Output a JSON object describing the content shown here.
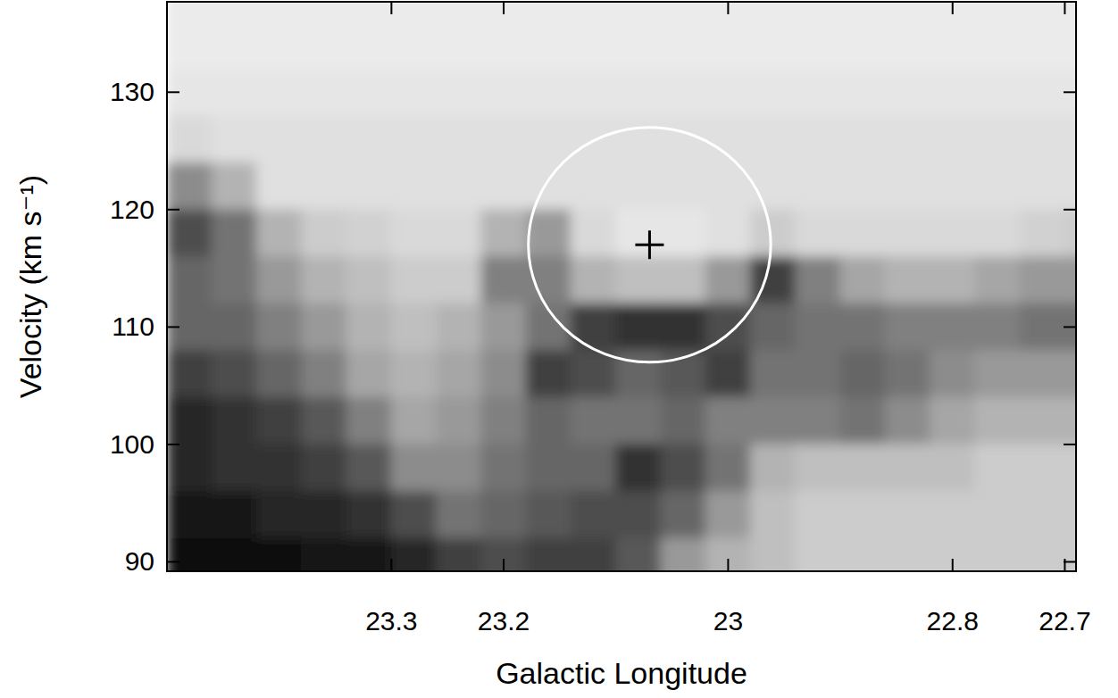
{
  "chart_data": {
    "type": "heatmap",
    "xlabel": "Galactic Longitude",
    "ylabel": "Velocity (km s⁻¹)",
    "xlim": [
      23.5,
      22.69
    ],
    "ylim": [
      89.2,
      137.7
    ],
    "xticks": [
      23.3,
      23.2,
      23.0,
      22.8,
      22.7
    ],
    "yticks": [
      90,
      100,
      110,
      120,
      130
    ],
    "zlim": [
      0,
      1
    ],
    "x": [
      23.48,
      23.44,
      23.4,
      23.36,
      23.32,
      23.28,
      23.24,
      23.2,
      23.16,
      23.12,
      23.08,
      23.04,
      23.0,
      22.96,
      22.92,
      22.88,
      22.84,
      22.8,
      22.76,
      22.72,
      22.68
    ],
    "y": [
      138,
      134,
      130,
      126,
      122,
      118,
      114,
      110,
      106,
      102,
      98,
      94,
      90
    ],
    "cells": [
      [
        0.08,
        0.08,
        0.08,
        0.08,
        0.08,
        0.08,
        0.08,
        0.08,
        0.08,
        0.08,
        0.08,
        0.08,
        0.08,
        0.08,
        0.08,
        0.08,
        0.08,
        0.08,
        0.08,
        0.08,
        0.08
      ],
      [
        0.08,
        0.08,
        0.08,
        0.08,
        0.08,
        0.08,
        0.08,
        0.08,
        0.08,
        0.08,
        0.08,
        0.08,
        0.08,
        0.08,
        0.08,
        0.08,
        0.08,
        0.08,
        0.08,
        0.08,
        0.08
      ],
      [
        0.1,
        0.1,
        0.1,
        0.1,
        0.1,
        0.1,
        0.1,
        0.1,
        0.1,
        0.1,
        0.1,
        0.1,
        0.1,
        0.1,
        0.1,
        0.1,
        0.1,
        0.1,
        0.1,
        0.1,
        0.1
      ],
      [
        0.15,
        0.12,
        0.12,
        0.12,
        0.12,
        0.12,
        0.12,
        0.12,
        0.12,
        0.12,
        0.12,
        0.12,
        0.12,
        0.12,
        0.12,
        0.12,
        0.12,
        0.12,
        0.12,
        0.12,
        0.12
      ],
      [
        0.45,
        0.3,
        0.12,
        0.12,
        0.12,
        0.12,
        0.12,
        0.12,
        0.12,
        0.12,
        0.12,
        0.12,
        0.12,
        0.12,
        0.12,
        0.12,
        0.12,
        0.12,
        0.12,
        0.12,
        0.12
      ],
      [
        0.7,
        0.55,
        0.3,
        0.2,
        0.18,
        0.15,
        0.15,
        0.3,
        0.4,
        0.15,
        0.1,
        0.1,
        0.12,
        0.2,
        0.15,
        0.15,
        0.15,
        0.15,
        0.15,
        0.18,
        0.2
      ],
      [
        0.6,
        0.55,
        0.4,
        0.3,
        0.25,
        0.2,
        0.2,
        0.5,
        0.5,
        0.3,
        0.25,
        0.25,
        0.4,
        0.75,
        0.5,
        0.35,
        0.3,
        0.3,
        0.35,
        0.4,
        0.4
      ],
      [
        0.6,
        0.6,
        0.5,
        0.4,
        0.3,
        0.25,
        0.3,
        0.4,
        0.55,
        0.75,
        0.8,
        0.8,
        0.7,
        0.6,
        0.55,
        0.55,
        0.5,
        0.5,
        0.5,
        0.55,
        0.55
      ],
      [
        0.75,
        0.7,
        0.6,
        0.5,
        0.35,
        0.3,
        0.35,
        0.45,
        0.75,
        0.7,
        0.6,
        0.65,
        0.75,
        0.55,
        0.55,
        0.6,
        0.55,
        0.45,
        0.4,
        0.4,
        0.4
      ],
      [
        0.85,
        0.8,
        0.75,
        0.65,
        0.5,
        0.35,
        0.4,
        0.5,
        0.6,
        0.55,
        0.55,
        0.6,
        0.5,
        0.5,
        0.5,
        0.55,
        0.45,
        0.35,
        0.3,
        0.3,
        0.3
      ],
      [
        0.85,
        0.8,
        0.8,
        0.75,
        0.65,
        0.45,
        0.45,
        0.55,
        0.6,
        0.6,
        0.8,
        0.7,
        0.55,
        0.3,
        0.25,
        0.25,
        0.25,
        0.25,
        0.2,
        0.2,
        0.2
      ],
      [
        0.9,
        0.9,
        0.85,
        0.85,
        0.8,
        0.7,
        0.55,
        0.6,
        0.65,
        0.7,
        0.7,
        0.6,
        0.4,
        0.25,
        0.2,
        0.2,
        0.2,
        0.2,
        0.2,
        0.2,
        0.2
      ],
      [
        0.95,
        0.95,
        0.95,
        0.9,
        0.9,
        0.85,
        0.75,
        0.7,
        0.75,
        0.75,
        0.65,
        0.4,
        0.3,
        0.25,
        0.2,
        0.2,
        0.2,
        0.2,
        0.2,
        0.2,
        0.2
      ]
    ],
    "circle": {
      "x": 23.07,
      "y": 117,
      "x_radius": 0.108,
      "y_radius": 10,
      "color": "#ffffff"
    },
    "marker_point": {
      "x": 23.07,
      "y": 117,
      "marker": "plus",
      "color": "#000000"
    }
  }
}
